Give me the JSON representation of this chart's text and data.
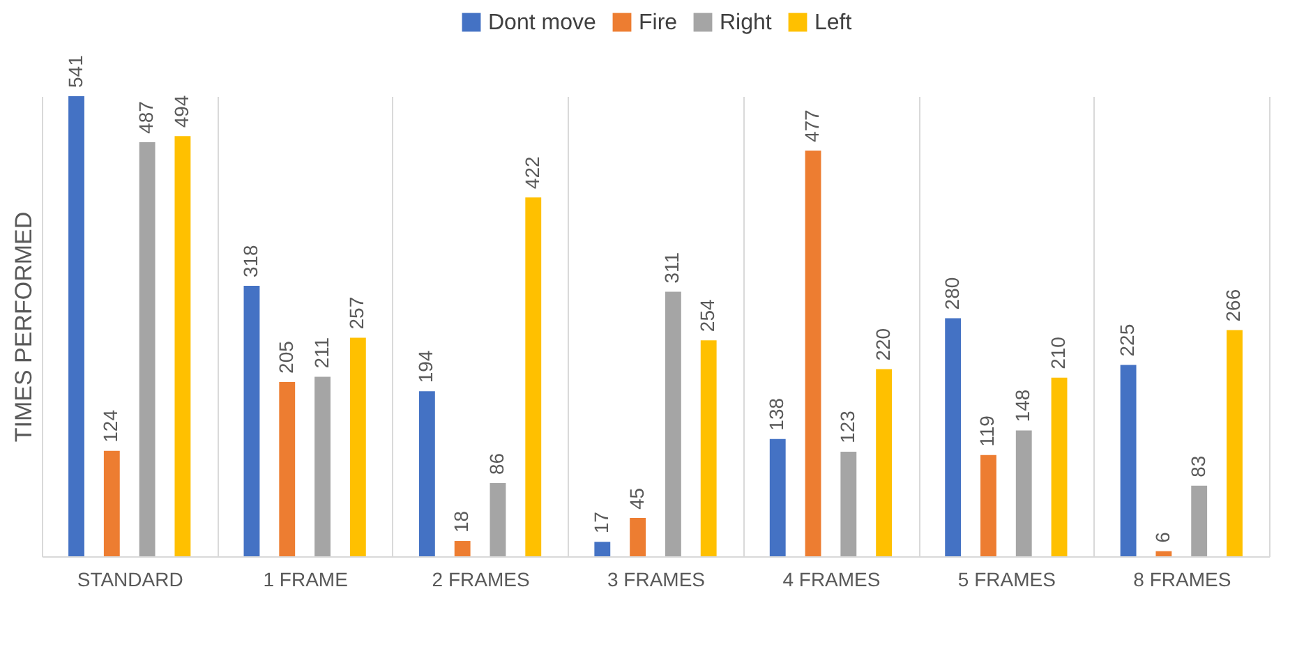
{
  "chart_data": {
    "type": "bar",
    "ylabel": "TIMES PERFORMED",
    "categories": [
      "STANDARD",
      "1 FRAME",
      "2 FRAMES",
      "3 FRAMES",
      "4 FRAMES",
      "5 FRAMES",
      "8 FRAMES"
    ],
    "series": [
      {
        "name": "Dont move",
        "color": "#4472c4",
        "values": [
          541,
          318,
          194,
          17,
          138,
          280,
          225
        ]
      },
      {
        "name": "Fire",
        "color": "#ed7d31",
        "values": [
          124,
          205,
          18,
          45,
          477,
          119,
          6
        ]
      },
      {
        "name": "Right",
        "color": "#a5a5a5",
        "values": [
          487,
          211,
          86,
          311,
          123,
          148,
          83
        ]
      },
      {
        "name": "Left",
        "color": "#ffc000",
        "values": [
          494,
          257,
          422,
          254,
          220,
          210,
          266
        ]
      }
    ],
    "data_labels": true,
    "grid": "x",
    "legend": "top"
  }
}
